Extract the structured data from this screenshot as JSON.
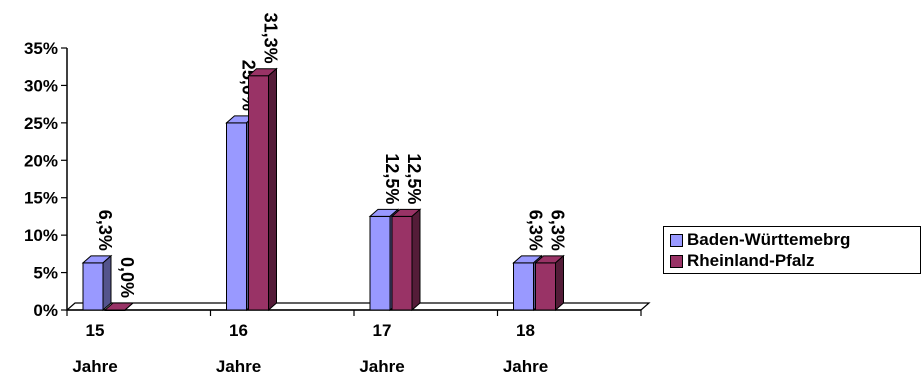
{
  "chart_data": {
    "type": "bar",
    "title": "",
    "xlabel": "",
    "ylabel": "",
    "categories": [
      {
        "line1": "15",
        "line2": "Jahre"
      },
      {
        "line1": "16",
        "line2": "Jahre"
      },
      {
        "line1": "17",
        "line2": "Jahre"
      },
      {
        "line1": "18",
        "line2": "Jahre"
      }
    ],
    "series": [
      {
        "name": "Baden-Württemebrg",
        "color": "#9999ff",
        "values": [
          6.3,
          25.0,
          12.5,
          6.3
        ],
        "labels": [
          "6,3%",
          "25,0%",
          "12,5%",
          "6,3%"
        ]
      },
      {
        "name": "Rheinland-Pfalz",
        "color": "#993366",
        "values": [
          0.0,
          31.3,
          12.5,
          6.3
        ],
        "labels": [
          "0,0%",
          "31,3%",
          "12,5%",
          "6,3%"
        ]
      }
    ],
    "yticks": [
      "0%",
      "5%",
      "10%",
      "15%",
      "20%",
      "25%",
      "30%",
      "35%"
    ],
    "ylim": [
      0,
      35
    ],
    "grid": false,
    "legend_position": "right",
    "style": "3d-column"
  }
}
